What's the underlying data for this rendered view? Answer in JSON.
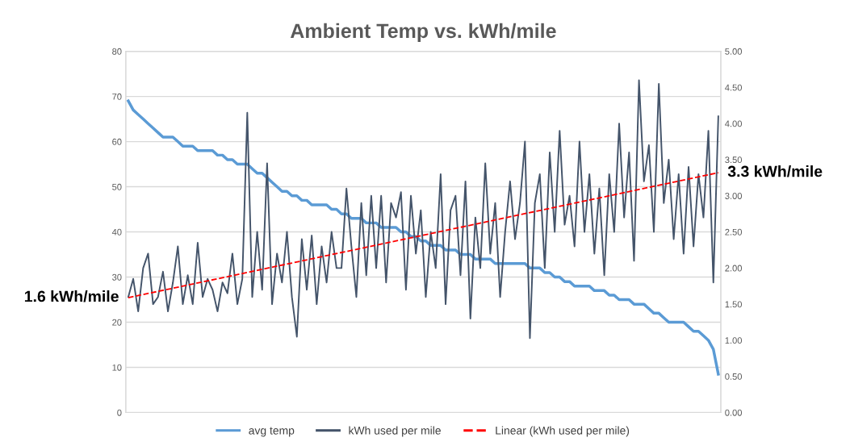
{
  "chart_data": {
    "type": "line",
    "title": "Ambient Temp vs. kWh/mile",
    "categories": [
      null,
      null,
      null,
      null,
      null,
      null,
      null,
      null,
      null,
      null,
      null,
      null,
      null,
      null,
      null,
      null,
      null,
      null,
      null,
      null,
      null,
      null,
      null,
      null,
      null,
      null,
      null,
      null,
      null,
      null,
      null,
      null,
      null,
      null,
      null,
      null,
      null,
      null,
      null,
      null,
      null,
      null,
      null,
      null,
      null,
      null,
      null,
      null,
      null,
      null,
      null,
      null,
      null,
      null,
      null,
      null,
      null,
      null,
      null,
      null,
      null,
      null,
      null,
      null,
      null,
      null,
      null,
      null,
      null,
      null,
      null,
      null,
      null,
      null,
      null,
      null,
      null,
      null,
      null,
      null,
      null,
      null,
      null,
      null,
      null,
      null,
      null,
      null,
      null,
      null,
      null,
      null,
      null,
      null,
      null,
      null,
      null,
      null,
      null,
      null,
      null,
      null,
      null,
      null,
      null,
      null,
      null,
      null,
      null,
      null,
      null,
      null,
      null,
      null,
      null,
      null,
      null,
      null,
      null,
      null
    ],
    "series": [
      {
        "name": "avg temp",
        "color": "#5b9bd5",
        "values": [
          69,
          67,
          66,
          65,
          64,
          63,
          62,
          61,
          61,
          61,
          60,
          59,
          59,
          59,
          58,
          58,
          58,
          58,
          57,
          57,
          56,
          56,
          55,
          55,
          55,
          54,
          53,
          53,
          52,
          51,
          50,
          49,
          49,
          48,
          48,
          47,
          47,
          46,
          46,
          46,
          46,
          45,
          45,
          44,
          44,
          43,
          43,
          43,
          42,
          42,
          42,
          41,
          41,
          41,
          41,
          40,
          40,
          39,
          39,
          38,
          38,
          37,
          37,
          37,
          36,
          36,
          36,
          35,
          35,
          35,
          34,
          34,
          34,
          34,
          33,
          33,
          33,
          33,
          33,
          33,
          33,
          32,
          32,
          32,
          31,
          31,
          30,
          30,
          29,
          29,
          28,
          28,
          28,
          28,
          27,
          27,
          27,
          26,
          26,
          25,
          25,
          25,
          24,
          24,
          24,
          23,
          22,
          22,
          21,
          20,
          20,
          20,
          20,
          19,
          18,
          18,
          17,
          16,
          14,
          8.5
        ]
      },
      {
        "name": "kWh used per mile",
        "color": "#44546a",
        "axis": "y2",
        "values": [
          1.6,
          1.85,
          1.4,
          2.0,
          2.2,
          1.5,
          1.6,
          1.95,
          1.4,
          1.8,
          2.3,
          1.5,
          1.9,
          1.5,
          2.35,
          1.6,
          1.85,
          1.7,
          1.4,
          1.8,
          1.65,
          2.2,
          1.5,
          1.85,
          4.15,
          1.6,
          2.5,
          1.7,
          3.45,
          1.5,
          2.2,
          1.8,
          2.5,
          1.6,
          1.05,
          2.4,
          1.7,
          2.45,
          1.5,
          2.3,
          1.8,
          2.5,
          2.0,
          2.0,
          3.1,
          2.3,
          1.6,
          2.9,
          1.9,
          3.0,
          2.0,
          3.0,
          1.8,
          2.9,
          2.7,
          3.05,
          1.7,
          3.0,
          2.2,
          2.8,
          1.6,
          2.5,
          2.0,
          3.3,
          1.5,
          2.8,
          3.0,
          1.9,
          3.2,
          1.3,
          2.7,
          2.0,
          3.45,
          2.2,
          2.9,
          1.6,
          2.5,
          3.2,
          2.4,
          2.9,
          3.75,
          1.03,
          2.9,
          3.3,
          2.0,
          3.6,
          2.5,
          3.9,
          2.6,
          3.0,
          2.3,
          3.75,
          2.5,
          3.3,
          2.2,
          3.1,
          1.9,
          3.3,
          2.5,
          4.0,
          2.7,
          3.6,
          2.1,
          4.6,
          3.2,
          3.7,
          2.5,
          4.55,
          2.9,
          3.5,
          2.4,
          3.3,
          2.2,
          3.4,
          2.3,
          3.3,
          2.7,
          3.9,
          1.8,
          4.1
        ]
      },
      {
        "name": "Linear (kWh used per mile)",
        "color": "#ff0000",
        "axis": "y2",
        "line_style": "dashed",
        "values": [
          1.59,
          null,
          null,
          null,
          null,
          null,
          null,
          null,
          null,
          null,
          null,
          null,
          null,
          null,
          null,
          null,
          null,
          null,
          null,
          null,
          null,
          null,
          null,
          null,
          null,
          null,
          null,
          null,
          null,
          null,
          null,
          null,
          null,
          null,
          null,
          null,
          null,
          null,
          null,
          null,
          null,
          null,
          null,
          null,
          null,
          null,
          null,
          null,
          null,
          null,
          null,
          null,
          null,
          null,
          null,
          null,
          null,
          null,
          null,
          null,
          null,
          null,
          null,
          null,
          null,
          null,
          null,
          null,
          null,
          null,
          null,
          null,
          null,
          null,
          null,
          null,
          null,
          null,
          null,
          null,
          null,
          null,
          null,
          null,
          null,
          null,
          null,
          null,
          null,
          null,
          null,
          null,
          null,
          null,
          null,
          null,
          null,
          null,
          null,
          null,
          null,
          null,
          null,
          null,
          null,
          null,
          null,
          null,
          null,
          null,
          null,
          null,
          null,
          null,
          null,
          null,
          null,
          null,
          null,
          3.32
        ]
      }
    ],
    "ylim": [
      0,
      80
    ],
    "yticks": [
      0,
      10,
      20,
      30,
      40,
      50,
      60,
      70,
      80
    ],
    "y2lim": [
      0,
      5
    ],
    "y2ticks": [
      {
        "value": 0,
        "label": "0.00"
      },
      {
        "value": 0.5,
        "label": "0.50"
      },
      {
        "value": 1,
        "label": "1.00"
      },
      {
        "value": 1.5,
        "label": "1.50"
      },
      {
        "value": 2,
        "label": "2.00"
      },
      {
        "value": 2.5,
        "label": "2.50"
      },
      {
        "value": 3,
        "label": "3.00"
      },
      {
        "value": 3.5,
        "label": "3.50"
      },
      {
        "value": 4,
        "label": "4.00"
      },
      {
        "value": 4.5,
        "label": "4.50"
      },
      {
        "value": 5,
        "label": "5.00"
      }
    ],
    "annotations": [
      "1.6 kWh/mile",
      "3.3 kWh/mile"
    ],
    "grid": "y",
    "legend": "bottom",
    "tick_labels": "y"
  }
}
